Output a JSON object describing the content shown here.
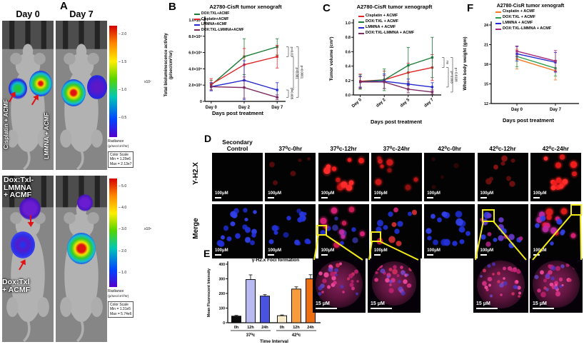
{
  "labels": {
    "A": "A",
    "B": "B",
    "C": "C",
    "D": "D",
    "E": "E",
    "F": "F"
  },
  "panel_a": {
    "day0": "Day 0",
    "day7": "Day 7",
    "mouse_labels": {
      "cisplatin": "Cisplatin + ACMF",
      "lmmna": "LMMNA + ACMF",
      "dox_lmmna_lines": [
        "Dox:Txl-",
        "LMMNA",
        "+ ACMF"
      ],
      "dox_lines": [
        "Dox:Txl",
        "+ ACMF"
      ]
    },
    "colorbar_top": {
      "ticks": [
        "2.0",
        "1.5",
        "1.0",
        "0.5"
      ],
      "exp": "x10⁷",
      "radiance": "Radiance",
      "units": "(p/sec/cm²/sr)",
      "scale": [
        "Color Scale",
        "Min = 1.29e6",
        "Max = 2.13e7"
      ]
    },
    "colorbar_bottom": {
      "ticks": [
        "5.0",
        "4.0",
        "3.0",
        "2.0",
        "1.0"
      ],
      "exp": "x10⁶",
      "radiance": "Radiance",
      "units": "(p/sec/cm²/sr)",
      "scale": [
        "Color Scale",
        "Min = 1.31e5",
        "Max = 5.74e6"
      ]
    }
  },
  "chart_data": [
    {
      "id": "B",
      "type": "line",
      "title": "A2780-CisR tumor xenograft",
      "ylabel_lines": [
        "Total bioluminescence activity",
        "(p/sec/cm²/sr)"
      ],
      "xlabel": "Days post treatment",
      "categories": [
        "Day 0",
        "Day 2",
        "Day 7"
      ],
      "ylim": [
        0,
        10
      ],
      "yticks": [
        {
          "v": 0,
          "label": "0"
        },
        {
          "v": 2,
          "label": "2.0×10⁶"
        },
        {
          "v": 4,
          "label": "4.0×10⁶"
        },
        {
          "v": 6,
          "label": "6.0×10⁶"
        },
        {
          "v": 8,
          "label": "8.0×10⁶"
        },
        {
          "v": 10,
          "label": "1.0×10⁷"
        }
      ],
      "unit_note": "values in p/sec/cm²/sr, plotted ×10⁶",
      "series": [
        {
          "name": "DOX:TXL+ACMF",
          "color": "#1d7c39",
          "values": [
            2.0,
            5.5,
            6.7
          ],
          "err": [
            0.6,
            2.2,
            1.0
          ]
        },
        {
          "name": "Cisplatin+ACMF",
          "color": "#e02426",
          "values": [
            2.1,
            4.5,
            5.5
          ],
          "err": [
            0.7,
            2.0,
            1.4
          ]
        },
        {
          "name": "LMMNA+ACMF",
          "color": "#2328cf",
          "values": [
            1.8,
            2.6,
            1.4
          ],
          "err": [
            0.5,
            2.4,
            0.9
          ]
        },
        {
          "name": "DOX:TXL-LMMNA+ACMF",
          "color": "#7e2b62",
          "values": [
            1.8,
            1.7,
            0.5
          ],
          "err": [
            0.4,
            1.3,
            0.3
          ]
        }
      ],
      "annotations": [
        {
          "a": 0,
          "b": 1,
          "off": 2,
          "label": "p=0.01"
        },
        {
          "a": 2,
          "b": 3,
          "off": 2,
          "label": "p=0.005"
        },
        {
          "a": 1,
          "b": 2,
          "off": 9,
          "label": "p=0.001"
        },
        {
          "a": 0,
          "b": 3,
          "off": 16,
          "label": "p=0.0001"
        }
      ],
      "rotate_xticks": false
    },
    {
      "id": "C",
      "type": "line",
      "title": "A2780-CisR tumor xenograpft",
      "ylabel_lines": [
        "Tumor volume (cm³)"
      ],
      "xlabel": "Days post treatment",
      "categories": [
        "Day 0",
        "day 2",
        "day 5",
        "day 7"
      ],
      "ylim": [
        0,
        1.0
      ],
      "yticks": [
        {
          "v": 0,
          "label": "0.0"
        },
        {
          "v": 0.2,
          "label": "0.2"
        },
        {
          "v": 0.4,
          "label": "0.4"
        },
        {
          "v": 0.6,
          "label": "0.6"
        },
        {
          "v": 0.8,
          "label": "0.8"
        },
        {
          "v": 1.0,
          "label": "1.0"
        }
      ],
      "series": [
        {
          "name": "Cisplatin + ACMF",
          "color": "#e02426",
          "values": [
            0.19,
            0.21,
            0.31,
            0.38
          ],
          "err": [
            0.1,
            0.12,
            0.13,
            0.18
          ]
        },
        {
          "name": "DOX:TXL + ACMF",
          "color": "#1d7c39",
          "values": [
            0.18,
            0.21,
            0.41,
            0.52
          ],
          "err": [
            0.1,
            0.15,
            0.25,
            0.28
          ]
        },
        {
          "name": "LMMNA + ACMF",
          "color": "#2328cf",
          "values": [
            0.18,
            0.19,
            0.15,
            0.11
          ],
          "err": [
            0.08,
            0.1,
            0.07,
            0.06
          ]
        },
        {
          "name": "DOX:TXL-LMMNA + ACMF",
          "color": "#7e2b62",
          "values": [
            0.18,
            0.18,
            0.08,
            0.04
          ],
          "err": [
            0.07,
            0.09,
            0.05,
            0.03
          ]
        }
      ],
      "annotations": [
        {
          "a": 1,
          "b": 0,
          "off": 2,
          "label": "ns"
        },
        {
          "a": 0,
          "b": 2,
          "off": 8,
          "label": "p= 0.003"
        },
        {
          "a": 1,
          "b": 3,
          "off": 14,
          "label": "p= 0.0108"
        }
      ],
      "rotate_xticks": true
    },
    {
      "id": "F",
      "type": "line",
      "title": "A2780-CisR tumor xenograft",
      "ylabel_lines": [
        "Whole body weight (gm)"
      ],
      "xlabel": "Days post treatment",
      "categories": [
        "Day 0",
        "Day 7"
      ],
      "ylim": [
        12,
        24
      ],
      "yticks": [
        {
          "v": 12,
          "label": "12"
        },
        {
          "v": 15,
          "label": "15"
        },
        {
          "v": 18,
          "label": "18"
        },
        {
          "v": 21,
          "label": "21"
        },
        {
          "v": 24,
          "label": "24"
        }
      ],
      "series": [
        {
          "name": "Cisplatin + ACMF",
          "color": "#f07a28",
          "values": [
            18.8,
            17.0
          ],
          "err": [
            1.5,
            1.4
          ]
        },
        {
          "name": "DOX:TXL + ACMF",
          "color": "#2d9e50",
          "values": [
            19.2,
            17.4
          ],
          "err": [
            1.6,
            1.2
          ]
        },
        {
          "name": "LMMNA + ACMF",
          "color": "#2328cf",
          "values": [
            19.6,
            18.3
          ],
          "err": [
            1.1,
            1.5
          ]
        },
        {
          "name": "DOX:TXL-LMMNA + ACMF",
          "color": "#a62c7c",
          "values": [
            20.0,
            18.5
          ],
          "err": [
            0.8,
            1.6
          ]
        }
      ],
      "annotations": [],
      "rotate_xticks": false
    },
    {
      "id": "E",
      "type": "bar",
      "title": "γ-H2.x Foci formation",
      "ylabel": "Mean Fluorescent Intensity",
      "xlabel": "Time Interval",
      "categories": [
        "0h",
        "12h",
        "24h",
        "0h",
        "12h",
        "24h"
      ],
      "values": [
        45,
        295,
        182,
        48,
        230,
        300
      ],
      "errors": [
        5,
        32,
        10,
        5,
        15,
        28
      ],
      "colors": [
        "#0d0d0d",
        "#babaf3",
        "#4a52e0",
        "#f8e9c8",
        "#f79b3c",
        "#ee6f12"
      ],
      "groups": [
        {
          "label": "37⁰c",
          "from": 0,
          "to": 2
        },
        {
          "label": "42⁰c",
          "from": 3,
          "to": 5
        }
      ],
      "ylim": [
        0,
        400
      ],
      "yticks": [
        0,
        100,
        200,
        300,
        400
      ]
    }
  ],
  "panel_d": {
    "row_labels": [
      "Y-H2.X",
      "Merge"
    ],
    "columns": [
      "Secondary\nControl",
      "37⁰c-0hr",
      "37⁰c-12hr",
      "37⁰c-24hr",
      "42⁰c-0hr",
      "42⁰c-12hr",
      "42⁰c-24hr"
    ],
    "scalebar": "100μM",
    "row1_styles": [
      "black",
      "redVF",
      "redBright",
      "redMed",
      "redTrace",
      "redFaint",
      "redBright2"
    ],
    "row2_styles": [
      "blue",
      "blue2",
      "mergeA",
      "mergeB",
      "blue3",
      "mergeC",
      "mergeD"
    ]
  },
  "insets": {
    "scalebar": "15 μM"
  }
}
